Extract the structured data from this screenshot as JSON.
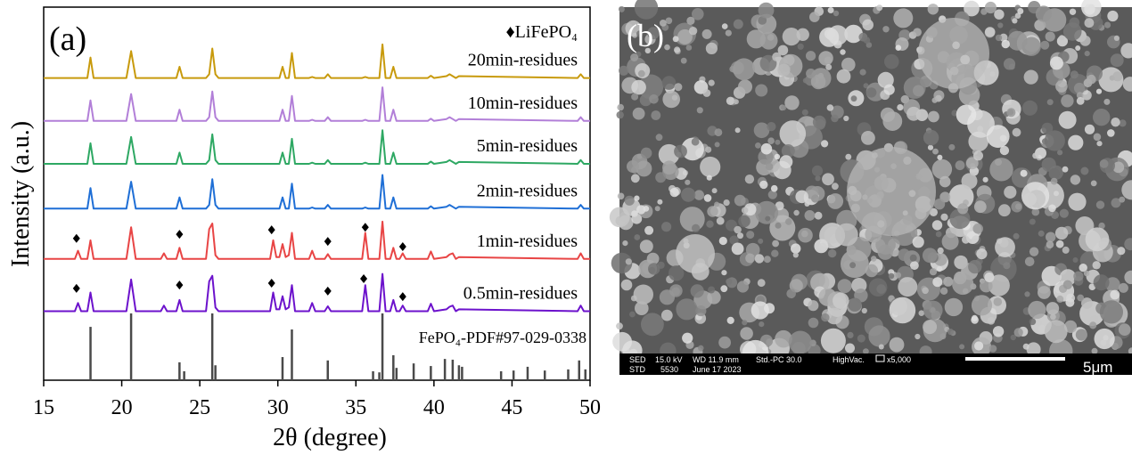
{
  "chart_data": {
    "type": "line",
    "panel_label": "(a)",
    "xlabel": "2θ (degree)",
    "ylabel": "Intensity (a.u.)",
    "xlim": [
      15,
      50
    ],
    "xticks": [
      15,
      20,
      25,
      30,
      35,
      40,
      45,
      50
    ],
    "ylim": [
      0,
      100
    ],
    "x": [
      15,
      17.0,
      17.2,
      17.4,
      17.8,
      18.0,
      18.2,
      20.3,
      20.6,
      20.9,
      22.5,
      22.7,
      22.9,
      23.5,
      23.7,
      23.9,
      25.4,
      25.6,
      25.8,
      26.0,
      26.2,
      29.5,
      29.7,
      29.9,
      30.1,
      30.3,
      30.5,
      30.7,
      30.9,
      31.1,
      32.0,
      32.2,
      32.4,
      33.0,
      33.2,
      33.4,
      35.4,
      35.6,
      35.8,
      36.5,
      36.7,
      36.9,
      37.2,
      37.4,
      37.6,
      37.8,
      38.0,
      38.2,
      39.6,
      39.8,
      40.0,
      40.8,
      41.0,
      41.2,
      41.4,
      41.6,
      49.2,
      49.4,
      49.6,
      50
    ],
    "series": [
      {
        "name": "20min-residues",
        "color": "#c89a0c",
        "values": [
          81,
          81,
          81,
          81,
          81,
          86.5,
          81,
          81,
          88.2,
          81,
          81,
          81,
          81,
          81,
          84,
          81,
          81,
          82,
          88.9,
          82,
          81,
          81,
          81,
          81,
          81,
          84,
          81,
          81,
          87.7,
          81,
          81,
          81.3,
          81,
          81,
          82,
          81,
          81,
          81.3,
          81,
          81,
          90,
          81,
          81,
          84,
          81,
          81,
          81,
          81,
          81,
          81.6,
          81,
          81.5,
          82,
          81.5,
          81,
          81.5,
          81,
          82,
          81,
          81
        ]
      },
      {
        "name": "10min-residues",
        "color": "#b27fd8",
        "values": [
          69.5,
          69.5,
          69.5,
          69.5,
          69.5,
          75,
          69.5,
          69.5,
          76.7,
          69.5,
          69.5,
          69.5,
          69.5,
          69.5,
          72.5,
          69.5,
          69.5,
          70.5,
          77.4,
          70.5,
          69.5,
          69.5,
          69.5,
          69.5,
          69.5,
          72.5,
          69.5,
          69.5,
          76.2,
          69.5,
          69.5,
          69.8,
          69.5,
          69.5,
          70.5,
          69.5,
          69.5,
          69.8,
          69.5,
          69.5,
          78.5,
          69.5,
          69.5,
          72.5,
          69.5,
          69.5,
          69.5,
          69.5,
          69.5,
          70.1,
          69.5,
          70,
          70.5,
          70,
          69.5,
          70,
          69.5,
          70.5,
          69.5,
          69.5
        ]
      },
      {
        "name": "5min-residues",
        "color": "#2ea863",
        "values": [
          58,
          58,
          58,
          58,
          58,
          63.5,
          58,
          58,
          65.2,
          58,
          58,
          58,
          58,
          58,
          61,
          58,
          58,
          59,
          65.9,
          59,
          58,
          58,
          58,
          58,
          58,
          61,
          58,
          58,
          64.7,
          58,
          58,
          58.3,
          58,
          58,
          59,
          58,
          58,
          58.3,
          58,
          58,
          67,
          58,
          58,
          61,
          58,
          58,
          58,
          58,
          58,
          58.6,
          58,
          58.5,
          59,
          58.5,
          58,
          58.5,
          58,
          59,
          58,
          58
        ]
      },
      {
        "name": "2min-residues",
        "color": "#1f6fd6",
        "values": [
          46,
          46,
          46,
          46,
          46,
          51.5,
          46,
          46,
          53.2,
          46,
          46,
          46,
          46,
          46,
          49,
          46,
          46,
          47,
          53.9,
          47,
          46,
          46,
          46,
          46,
          46,
          49,
          46,
          46,
          52.7,
          46,
          46,
          46.3,
          46,
          46,
          47,
          46,
          46,
          46.3,
          46,
          46,
          55,
          46,
          46,
          49,
          46,
          46,
          46,
          46,
          46,
          46.6,
          46,
          46.5,
          47,
          46.5,
          46,
          46.5,
          46,
          47,
          46,
          46
        ]
      },
      {
        "name": "1min-residues",
        "color": "#e84545",
        "values": [
          32.5,
          32.5,
          34.7,
          32.5,
          32.5,
          37.5,
          32.5,
          32.5,
          41,
          32.5,
          32.5,
          34,
          32.5,
          32.5,
          35.5,
          32.5,
          32.5,
          40.5,
          42,
          33.5,
          32.5,
          32.5,
          37.5,
          33,
          33,
          36.5,
          33,
          33.5,
          39.5,
          32.5,
          32.5,
          34.7,
          32.5,
          32.5,
          33.8,
          32.5,
          32.5,
          39.5,
          32.5,
          32.5,
          42.5,
          32.5,
          32.5,
          35.5,
          32.5,
          32.5,
          34,
          32.5,
          32.5,
          34.5,
          32.5,
          33,
          33.7,
          34,
          32.5,
          33,
          32.5,
          34,
          32.5,
          32.5
        ]
      },
      {
        "name": "0.5min-residues",
        "color": "#6c12cc",
        "values": [
          18.5,
          18.5,
          20.7,
          18.5,
          18.5,
          23.5,
          18.5,
          18.5,
          27,
          18.5,
          18.5,
          20,
          18.5,
          18.5,
          21.5,
          18.5,
          18.5,
          26.5,
          28,
          19.5,
          18.5,
          18.5,
          23.5,
          19,
          19,
          22.5,
          19,
          19.5,
          25.5,
          18.5,
          18.5,
          20.7,
          18.5,
          18.5,
          19.8,
          18.5,
          18.5,
          25.5,
          18.5,
          18.5,
          28.5,
          18.5,
          18.5,
          21.5,
          18.5,
          18.5,
          20,
          18.5,
          18.5,
          20.5,
          18.5,
          19,
          19.7,
          20,
          18.5,
          19,
          18.5,
          20,
          18.5,
          18.5
        ]
      }
    ],
    "reference": {
      "name": "FePO₄-PDF#97-029-0338",
      "color": "#4a4a4a",
      "x": [
        18.0,
        20.6,
        23.7,
        24.0,
        25.8,
        26.0,
        30.3,
        30.9,
        33.2,
        36.1,
        36.5,
        36.7,
        37.4,
        37.6,
        38.7,
        39.8,
        40.7,
        41.2,
        41.6,
        41.8,
        44.3,
        45.1,
        46.0,
        47.1,
        48.6,
        49.3,
        49.7
      ],
      "values": [
        14.3,
        17.9,
        4.8,
        2.4,
        17.9,
        4,
        6.2,
        13.6,
        5.3,
        2.4,
        2.1,
        17.9,
        6.7,
        3.3,
        4.5,
        3.8,
        5.7,
        5.5,
        4,
        3.6,
        2.4,
        2.6,
        3.6,
        2.6,
        2.9,
        5.3,
        2.9
      ]
    },
    "marker_legend": "♦LiFePO₄",
    "markers": {
      "x": [
        17.1,
        23.7,
        29.6,
        33.2,
        35.6,
        38.0,
        17.1,
        23.7,
        29.6,
        33.2,
        35.5,
        38.0
      ],
      "y": [
        38,
        39.1,
        40.3,
        37.2,
        41,
        35.8,
        24.6,
        25.5,
        26,
        23.9,
        27.2,
        22.4
      ]
    }
  },
  "sem_panel": {
    "panel_label": "(b)",
    "info_row1": [
      "SED",
      "15.0 kV",
      "WD 11.9 mm",
      "Std.-PC 30.0",
      "HighVac.",
      "x5,000"
    ],
    "info_row2": [
      "STD",
      "5530",
      "June 17 2023"
    ],
    "scale_label": "5μm"
  }
}
